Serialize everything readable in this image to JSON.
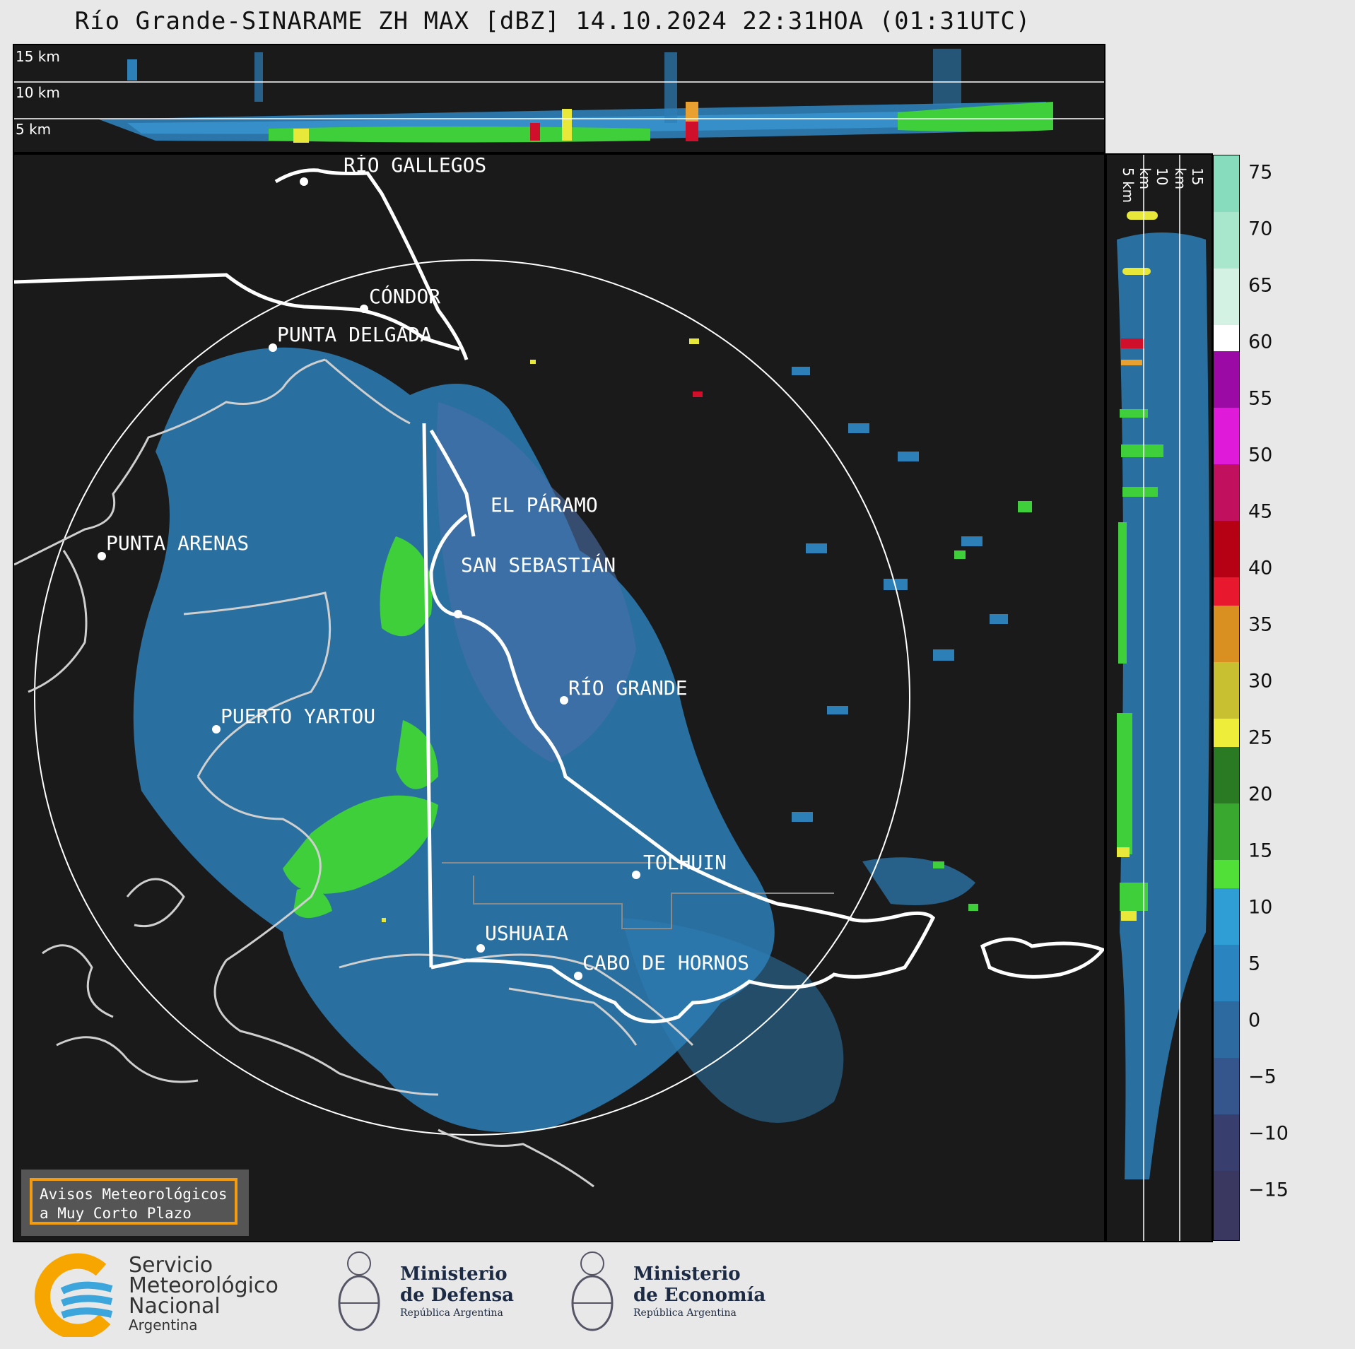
{
  "title": "Río Grande-SINARAME ZH MAX [dBZ] 14.10.2024 22:31HOA (01:31UTC)",
  "top_panel": {
    "height_labels": [
      "15 km",
      "10 km",
      "5 km"
    ]
  },
  "side_panel": {
    "height_labels": [
      "5 km",
      "10 km",
      "15 km"
    ]
  },
  "colorbar": {
    "ticks": [
      "75",
      "70",
      "65",
      "60",
      "55",
      "50",
      "45",
      "40",
      "35",
      "30",
      "25",
      "20",
      "15",
      "10",
      "5",
      "0",
      "−5",
      "−10",
      "−15"
    ]
  },
  "cities": [
    "RÍO GALLEGOS",
    "CÓNDOR",
    "PUNTA DELGADA",
    "EL PÁRAMO",
    "PUNTA ARENAS",
    "SAN SEBASTIÁN",
    "RÍO GRANDE",
    "PUERTO YARTOU",
    "TOLHUIN",
    "USHUAIA",
    "CABO DE HORNOS"
  ],
  "warning_box": {
    "line1": "Avisos Meteorológicos",
    "line2": "a Muy Corto Plazo"
  },
  "footer": {
    "smn": {
      "line1": "Servicio",
      "line2": "Meteorológico",
      "line3": "Nacional",
      "line4": "Argentina"
    },
    "defensa": {
      "line1": "Ministerio",
      "line2": "de Defensa",
      "line3": "República Argentina"
    },
    "economia": {
      "line1": "Ministerio",
      "line2": "de Economía",
      "line3": "República Argentina"
    }
  },
  "colors": {
    "panel_bg": "#1a1a1a",
    "echo_weak": "#2d7fb8",
    "echo_moderate": "#3fcf3a",
    "echo_strong": "#e8e83a",
    "echo_severe": "#d0102a",
    "accent_warning": "#f39c12"
  }
}
